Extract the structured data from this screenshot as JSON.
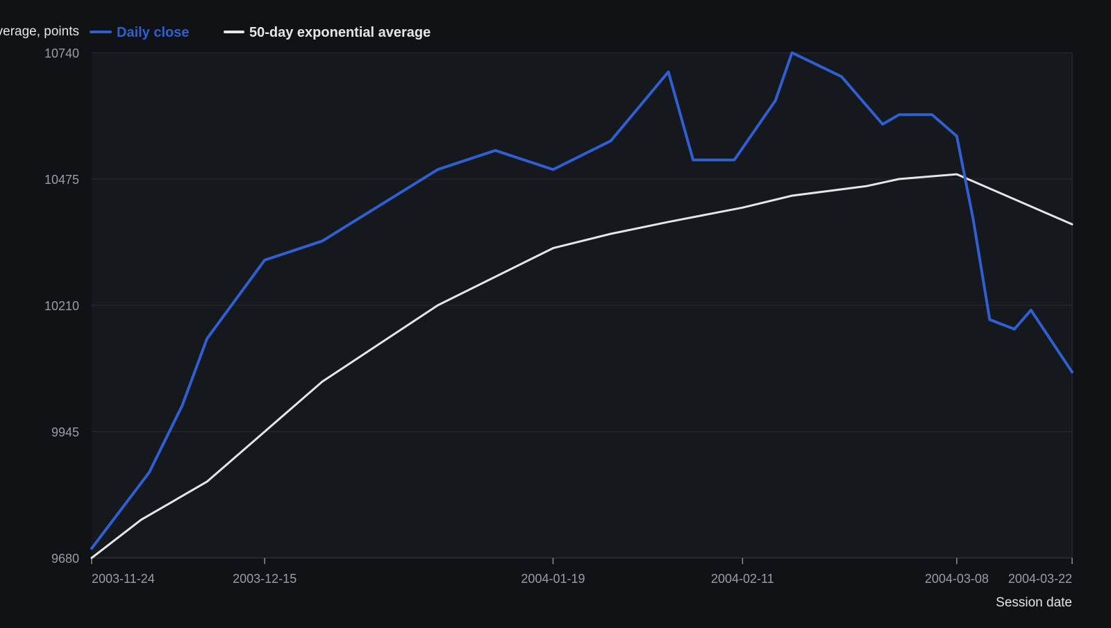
{
  "chart_data": {
    "type": "line",
    "ylabel": "Index level and average, points",
    "xlabel": "Session date",
    "ylim": [
      9680,
      10740
    ],
    "yticks": [
      9680,
      9945,
      10210,
      10475,
      10740
    ],
    "xlim": [
      "2003-11-24",
      "2004-03-22"
    ],
    "xticks": [
      "2003-11-24",
      "2003-12-15",
      "2004-01-19",
      "2004-02-11",
      "2004-03-08",
      "2004-03-22"
    ],
    "grid": true,
    "legend_position": "top-left",
    "series": [
      {
        "name": "Daily close",
        "color": "#2f5fd0",
        "points": [
          [
            "2003-11-24",
            9700
          ],
          [
            "2003-12-01",
            9860
          ],
          [
            "2003-12-05",
            10000
          ],
          [
            "2003-12-08",
            10140
          ],
          [
            "2003-12-15",
            10305
          ],
          [
            "2003-12-22",
            10345
          ],
          [
            "2003-12-29",
            10420
          ],
          [
            "2004-01-05",
            10495
          ],
          [
            "2004-01-12",
            10535
          ],
          [
            "2004-01-19",
            10495
          ],
          [
            "2004-01-26",
            10555
          ],
          [
            "2004-02-02",
            10700
          ],
          [
            "2004-02-05",
            10515
          ],
          [
            "2004-02-10",
            10515
          ],
          [
            "2004-02-15",
            10640
          ],
          [
            "2004-02-17",
            10740
          ],
          [
            "2004-02-23",
            10690
          ],
          [
            "2004-02-28",
            10590
          ],
          [
            "2004-03-01",
            10610
          ],
          [
            "2004-03-05",
            10610
          ],
          [
            "2004-03-08",
            10565
          ],
          [
            "2004-03-10",
            10390
          ],
          [
            "2004-03-12",
            10180
          ],
          [
            "2004-03-15",
            10160
          ],
          [
            "2004-03-17",
            10200
          ],
          [
            "2004-03-22",
            10070
          ]
        ]
      },
      {
        "name": "50-day exponential average",
        "color": "#e6e6e6",
        "points": [
          [
            "2003-11-24",
            9680
          ],
          [
            "2003-11-30",
            9760
          ],
          [
            "2003-12-08",
            9840
          ],
          [
            "2003-12-15",
            9945
          ],
          [
            "2003-12-22",
            10050
          ],
          [
            "2004-01-05",
            10210
          ],
          [
            "2004-01-19",
            10330
          ],
          [
            "2004-01-26",
            10360
          ],
          [
            "2004-02-02",
            10385
          ],
          [
            "2004-02-11",
            10415
          ],
          [
            "2004-02-17",
            10440
          ],
          [
            "2004-02-26",
            10460
          ],
          [
            "2004-03-01",
            10475
          ],
          [
            "2004-03-08",
            10485
          ],
          [
            "2004-03-22",
            10380
          ]
        ]
      }
    ]
  },
  "colors": {
    "background": "#101216",
    "plot_background": "#15181d",
    "grid": "#2a2d33",
    "axis_text": "#9a9da3",
    "legend_text": "#e6e6e6"
  }
}
